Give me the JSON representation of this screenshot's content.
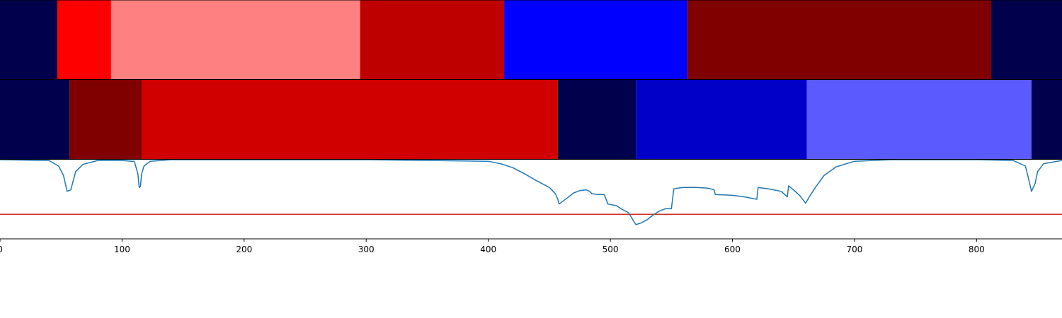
{
  "chart_data": {
    "type": "heatmap",
    "title": "",
    "xlabel": "",
    "ylabel": "",
    "xlim": [
      0,
      870
    ],
    "x_ticks": [
      0,
      100,
      200,
      300,
      400,
      500,
      600,
      700,
      800
    ],
    "x_tick_labels": [
      "0",
      "100",
      "200",
      "300",
      "400",
      "500",
      "600",
      "700",
      "800"
    ],
    "grid": false,
    "tracks": [
      {
        "segments": [
          {
            "start": 0,
            "end": 47,
            "color": "#00004c"
          },
          {
            "start": 47,
            "end": 91,
            "color": "#ff0000"
          },
          {
            "start": 91,
            "end": 295,
            "color": "#ff8080"
          },
          {
            "start": 295,
            "end": 413,
            "color": "#bf0000"
          },
          {
            "start": 413,
            "end": 563,
            "color": "#0000ff"
          },
          {
            "start": 563,
            "end": 812,
            "color": "#800000"
          },
          {
            "start": 812,
            "end": 870,
            "color": "#00004c"
          }
        ]
      },
      {
        "segments": [
          {
            "start": 0,
            "end": 57,
            "color": "#00004c"
          },
          {
            "start": 57,
            "end": 116,
            "color": "#800000"
          },
          {
            "start": 116,
            "end": 457,
            "color": "#d00000"
          },
          {
            "start": 457,
            "end": 521,
            "color": "#00004c"
          },
          {
            "start": 521,
            "end": 661,
            "color": "#0000c8"
          },
          {
            "start": 661,
            "end": 845,
            "color": "#5a5aff"
          },
          {
            "start": 845,
            "end": 870,
            "color": "#00004c"
          }
        ]
      }
    ],
    "line_panel": {
      "ylim": [
        0,
        1
      ],
      "series_color": "#1f77b4",
      "threshold": 0.31,
      "threshold_color": "#d62728",
      "x": [
        0,
        40,
        48,
        52,
        55,
        58,
        62,
        68,
        80,
        100,
        108,
        110,
        113,
        114,
        115,
        116,
        118,
        123,
        140,
        300,
        400,
        410,
        420,
        430,
        440,
        450,
        455,
        457,
        458,
        465,
        470,
        475,
        480,
        483,
        485,
        490,
        495,
        497,
        498,
        505,
        510,
        515,
        520,
        521,
        525,
        530,
        535,
        540,
        545,
        550,
        552,
        555,
        560,
        570,
        580,
        585,
        586,
        600,
        610,
        620,
        621,
        630,
        640,
        645,
        646,
        650,
        655,
        660,
        663,
        668,
        675,
        685,
        700,
        730,
        800,
        830,
        840,
        842,
        845,
        848,
        850,
        855,
        870
      ],
      "y": [
        1.0,
        0.99,
        0.92,
        0.8,
        0.6,
        0.62,
        0.85,
        0.94,
        0.99,
        0.99,
        0.98,
        0.98,
        0.82,
        0.65,
        0.66,
        0.82,
        0.92,
        0.98,
        1.0,
        1.0,
        0.98,
        0.95,
        0.9,
        0.82,
        0.73,
        0.65,
        0.57,
        0.5,
        0.44,
        0.52,
        0.58,
        0.61,
        0.62,
        0.6,
        0.57,
        0.56,
        0.56,
        0.48,
        0.44,
        0.42,
        0.37,
        0.33,
        0.2,
        0.18,
        0.2,
        0.24,
        0.3,
        0.35,
        0.38,
        0.38,
        0.63,
        0.64,
        0.65,
        0.65,
        0.64,
        0.62,
        0.56,
        0.55,
        0.53,
        0.5,
        0.65,
        0.63,
        0.6,
        0.53,
        0.67,
        0.62,
        0.55,
        0.45,
        0.53,
        0.65,
        0.8,
        0.91,
        0.98,
        1.0,
        1.0,
        0.99,
        0.92,
        0.8,
        0.6,
        0.7,
        0.85,
        0.95,
        0.99
      ]
    }
  }
}
